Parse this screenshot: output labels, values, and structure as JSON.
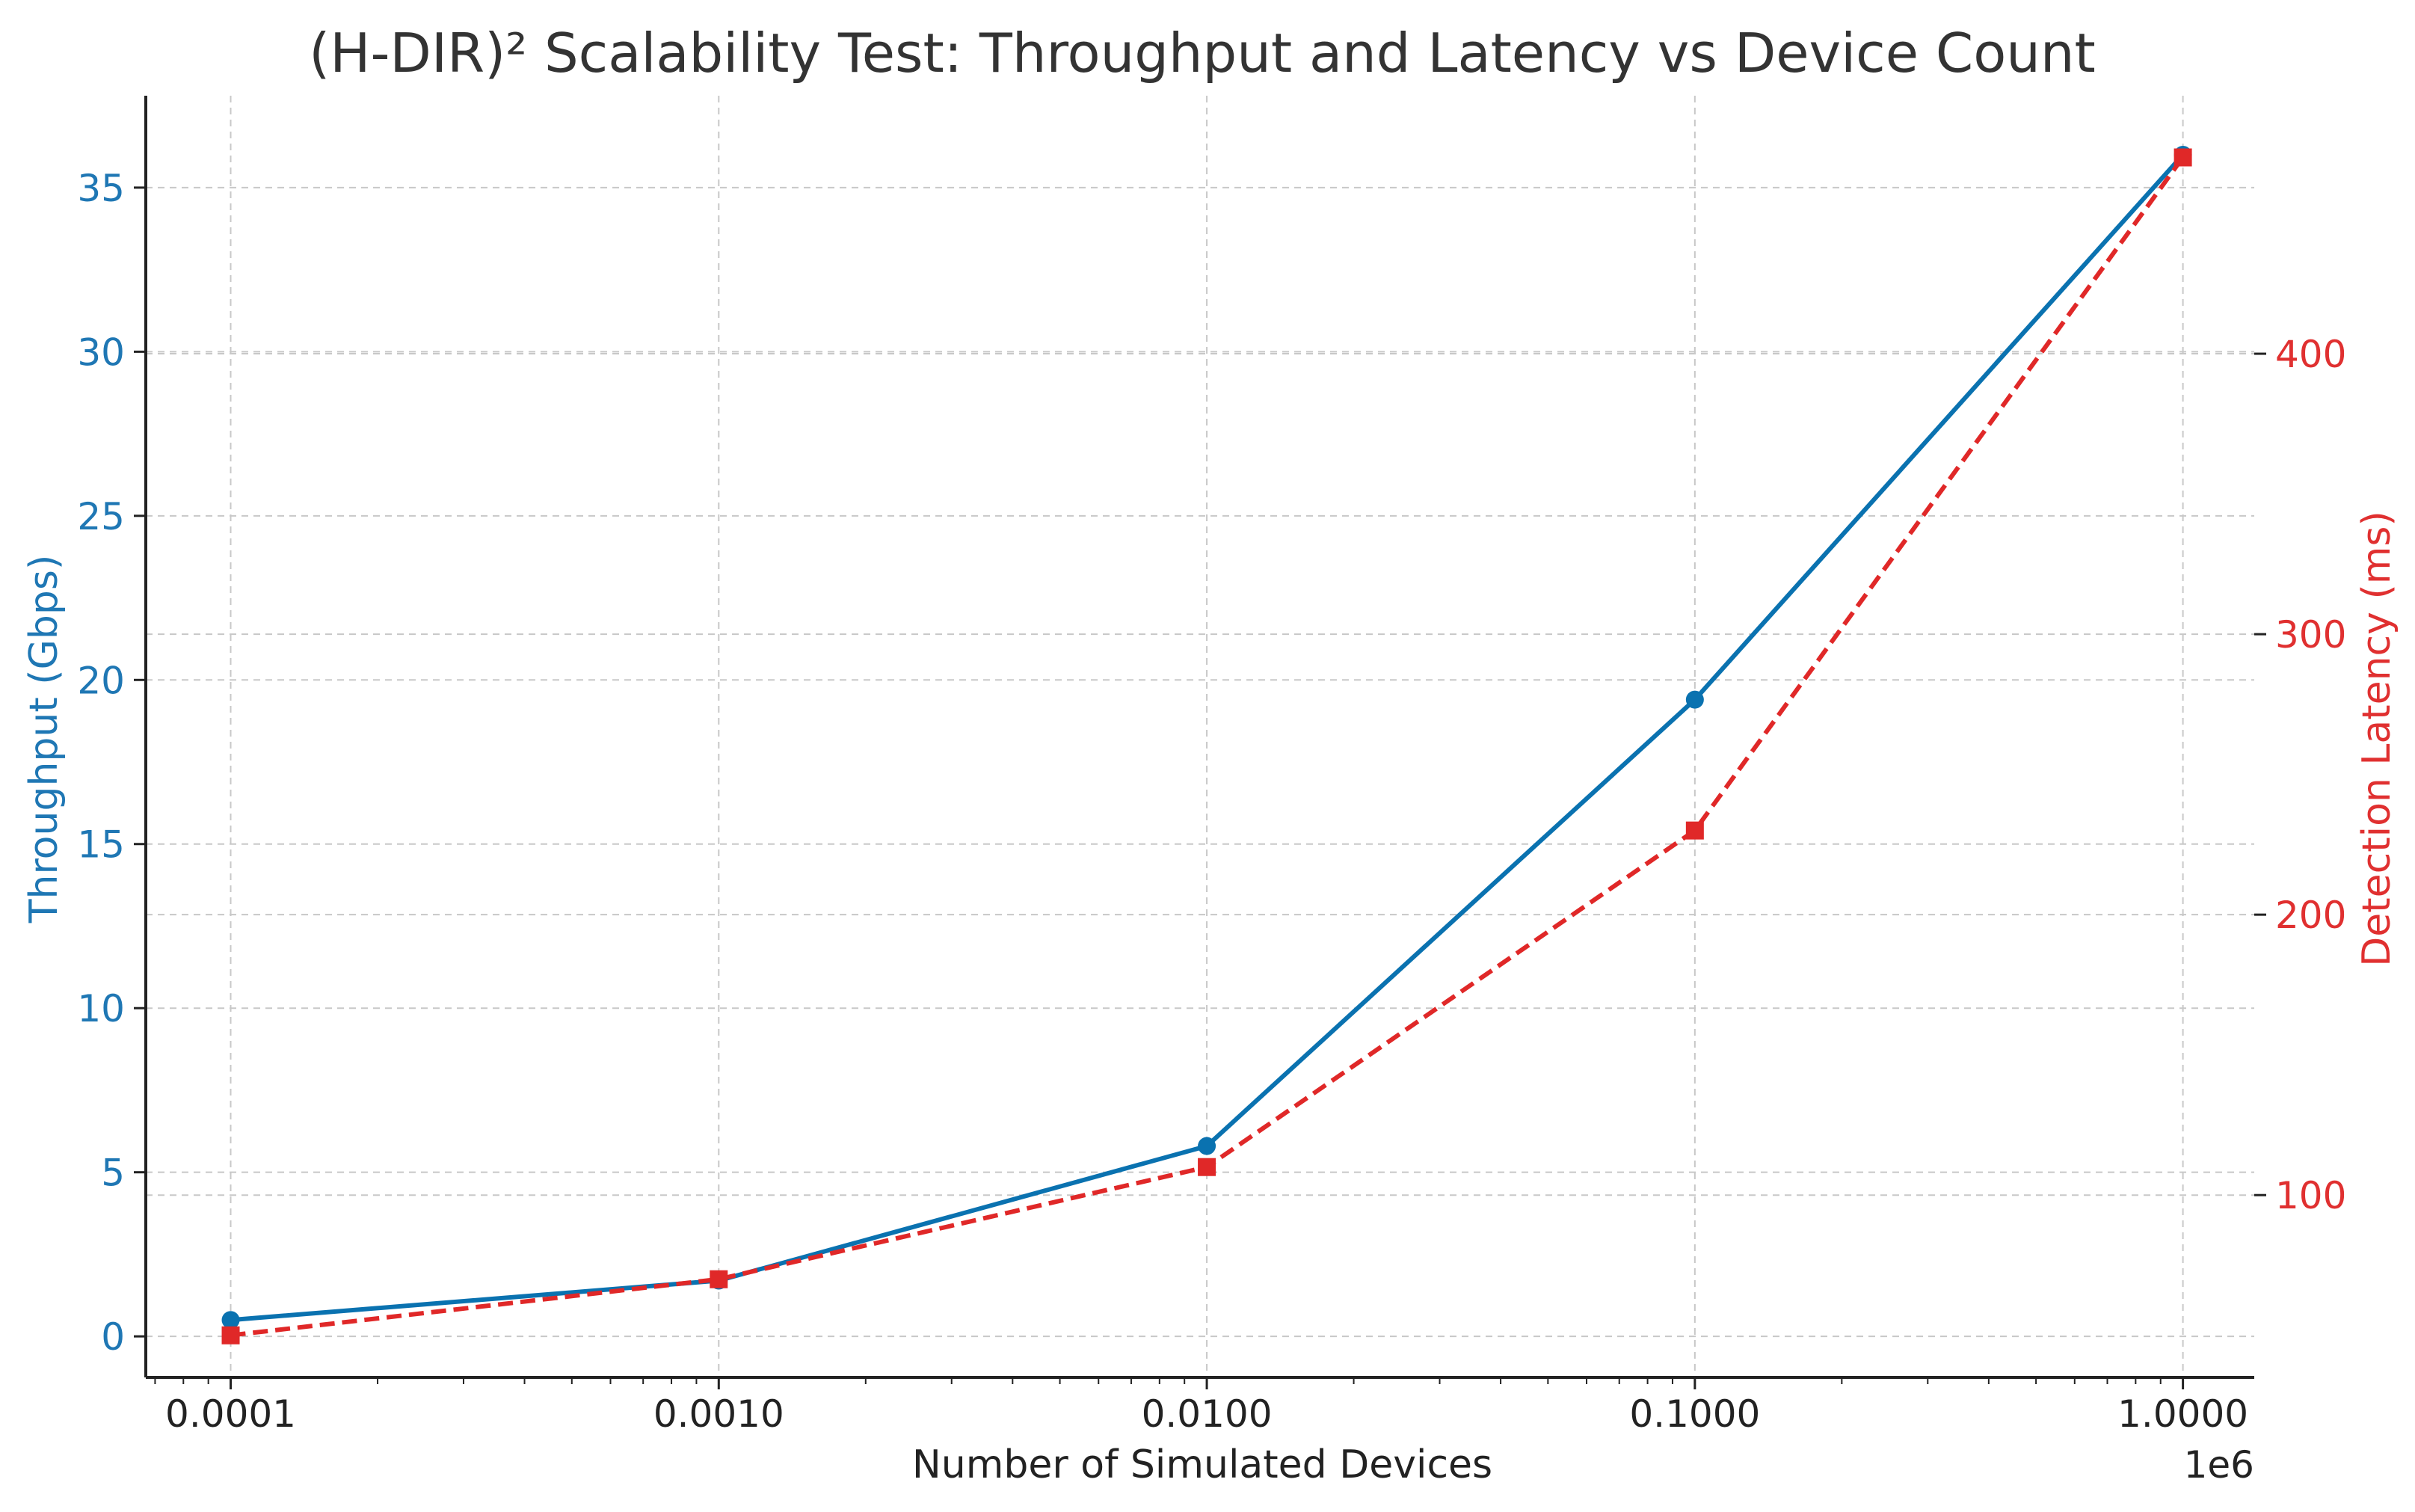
{
  "chart_data": {
    "type": "line",
    "title": "(H-DIR)² Scalability Test: Throughput and Latency vs Device Count",
    "xlabel": "Number of Simulated Devices",
    "x_scale": "log",
    "x_offset_label": "1e6",
    "x": [
      0.0001,
      0.001,
      0.01,
      0.1,
      1.0
    ],
    "x_tick_labels": [
      "0.0001",
      "0.0010",
      "0.0100",
      "0.1000",
      "1.0000"
    ],
    "xlim": [
      6.7e-05,
      1.4
    ],
    "grid": true,
    "axes": {
      "left": {
        "label": "Throughput (Gbps)",
        "color": "#1f77b4",
        "ylim": [
          -1.25,
          37.8
        ],
        "ticks": [
          0,
          5,
          10,
          15,
          20,
          25,
          30,
          35
        ],
        "tick_labels": [
          "0",
          "5",
          "10",
          "15",
          "20",
          "25",
          "30",
          "35"
        ]
      },
      "right": {
        "label": "Detection Latency (ms)",
        "color": "#e03030",
        "ylim": [
          35,
          492
        ],
        "ticks": [
          100,
          200,
          300,
          400
        ],
        "tick_labels": [
          "100",
          "200",
          "300",
          "400"
        ]
      }
    },
    "series": [
      {
        "values": [
          0.5,
          1.7,
          5.8,
          19.4,
          36.0
        ],
        "axis": "left",
        "color": "#0a72b0",
        "line_style": "solid",
        "marker": "circle"
      },
      {
        "values": [
          50,
          70,
          110,
          230,
          470
        ],
        "axis": "right",
        "color": "#e02828",
        "line_style": "dashed",
        "marker": "square"
      }
    ]
  }
}
